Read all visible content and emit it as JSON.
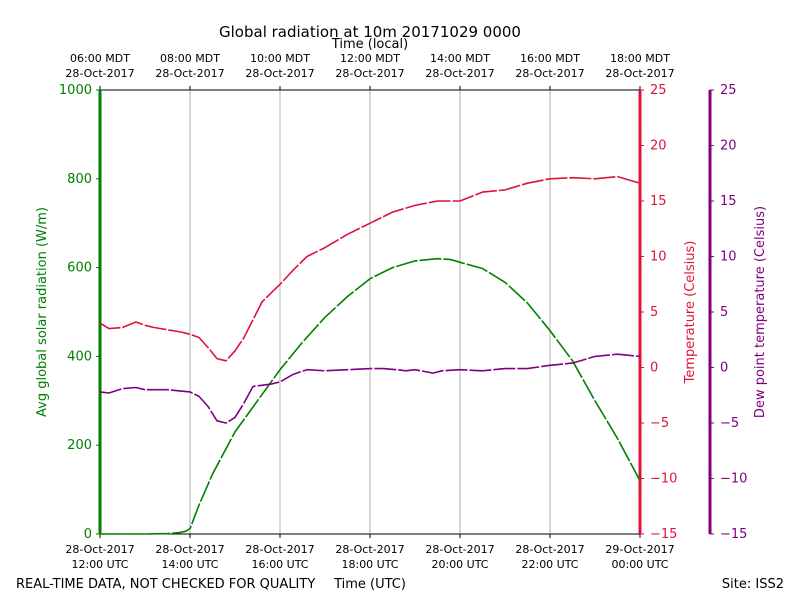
{
  "chart_data": {
    "type": "line",
    "title": "Global radiation at 10m 20171029 0000",
    "top_axis_label": "Time (local)",
    "bottom_axis_label": "Time (UTC)",
    "x_unit": "hours since 28-Oct-2017 12:00 UTC",
    "xlim": [
      0,
      12
    ],
    "x_ticks_utc": [
      {
        "x": 0,
        "line1": "28-Oct-2017",
        "line2": "12:00 UTC"
      },
      {
        "x": 2,
        "line1": "28-Oct-2017",
        "line2": "14:00 UTC"
      },
      {
        "x": 4,
        "line1": "28-Oct-2017",
        "line2": "16:00 UTC"
      },
      {
        "x": 6,
        "line1": "28-Oct-2017",
        "line2": "18:00 UTC"
      },
      {
        "x": 8,
        "line1": "28-Oct-2017",
        "line2": "20:00 UTC"
      },
      {
        "x": 10,
        "line1": "28-Oct-2017",
        "line2": "22:00 UTC"
      },
      {
        "x": 12,
        "line1": "29-Oct-2017",
        "line2": "00:00 UTC"
      }
    ],
    "x_ticks_local": [
      {
        "x": 0,
        "line1": "06:00 MDT",
        "line2": "28-Oct-2017"
      },
      {
        "x": 2,
        "line1": "08:00 MDT",
        "line2": "28-Oct-2017"
      },
      {
        "x": 4,
        "line1": "10:00 MDT",
        "line2": "28-Oct-2017"
      },
      {
        "x": 6,
        "line1": "12:00 MDT",
        "line2": "28-Oct-2017"
      },
      {
        "x": 8,
        "line1": "14:00 MDT",
        "line2": "28-Oct-2017"
      },
      {
        "x": 10,
        "line1": "16:00 MDT",
        "line2": "28-Oct-2017"
      },
      {
        "x": 12,
        "line1": "18:00 MDT",
        "line2": "28-Oct-2017"
      }
    ],
    "axes": [
      {
        "id": "radiation",
        "label": "Avg global solar radiation (W/m)",
        "color": "#008000",
        "ylim": [
          0,
          1000
        ],
        "ticks": [
          0,
          200,
          400,
          600,
          800,
          1000
        ]
      },
      {
        "id": "temperature",
        "label": "Temperature (Celsius)",
        "color": "#dc143c",
        "ylim": [
          -15,
          25
        ],
        "ticks": [
          -15,
          -10,
          -5,
          0,
          5,
          10,
          15,
          20,
          25
        ]
      },
      {
        "id": "dewpoint",
        "label": "Dew point temperature (Celsius)",
        "color": "#800080",
        "ylim": [
          -15,
          25
        ],
        "ticks": [
          -15,
          -10,
          -5,
          0,
          5,
          10,
          15,
          20,
          25
        ]
      }
    ],
    "series": [
      {
        "name": "Avg global solar radiation",
        "axis": "radiation",
        "color": "#008000",
        "x": [
          0,
          1,
          1.5,
          1.75,
          1.9,
          2.0,
          2.2,
          2.5,
          3.0,
          3.5,
          4.0,
          4.5,
          5.0,
          5.5,
          6.0,
          6.5,
          7.0,
          7.5,
          7.8,
          8.0,
          8.5,
          9.0,
          9.5,
          10.0,
          10.5,
          11.0,
          11.5,
          12.0
        ],
        "y": [
          0,
          0,
          1,
          3,
          6,
          12,
          65,
          135,
          230,
          300,
          370,
          432,
          488,
          535,
          575,
          600,
          615,
          620,
          618,
          612,
          598,
          567,
          520,
          458,
          390,
          300,
          215,
          120
        ]
      },
      {
        "name": "Temperature",
        "axis": "temperature",
        "color": "#dc143c",
        "x": [
          0,
          0.2,
          0.5,
          0.8,
          1.0,
          1.2,
          1.5,
          1.8,
          2.0,
          2.2,
          2.4,
          2.6,
          2.8,
          3.0,
          3.2,
          3.4,
          3.6,
          3.8,
          4.0,
          4.3,
          4.6,
          5.0,
          5.5,
          6.0,
          6.5,
          7.0,
          7.5,
          8.0,
          8.5,
          9.0,
          9.5,
          10.0,
          10.5,
          11.0,
          11.5,
          12.0
        ],
        "y": [
          4,
          3.5,
          3.6,
          4.1,
          3.8,
          3.6,
          3.4,
          3.2,
          3.0,
          2.7,
          1.8,
          0.8,
          0.6,
          1.5,
          2.7,
          4.3,
          5.9,
          6.7,
          7.5,
          8.8,
          10.0,
          10.8,
          12.0,
          13.0,
          14.0,
          14.6,
          15.0,
          15.0,
          15.8,
          16.0,
          16.6,
          17.0,
          17.1,
          17.0,
          17.2,
          16.6
        ]
      },
      {
        "name": "Dew point temperature",
        "axis": "dewpoint",
        "color": "#800080",
        "x": [
          0,
          0.2,
          0.5,
          0.8,
          1.0,
          1.5,
          2.0,
          2.2,
          2.4,
          2.6,
          2.8,
          3.0,
          3.2,
          3.4,
          3.6,
          3.8,
          4.0,
          4.3,
          4.6,
          5.0,
          5.5,
          6.0,
          6.3,
          6.6,
          6.8,
          7.0,
          7.4,
          7.6,
          8.0,
          8.5,
          9.0,
          9.5,
          10.0,
          10.5,
          11.0,
          11.5,
          12.0
        ],
        "y": [
          -2.2,
          -2.3,
          -1.9,
          -1.8,
          -2.0,
          -2.0,
          -2.2,
          -2.6,
          -3.5,
          -4.8,
          -5.0,
          -4.5,
          -3.2,
          -1.7,
          -1.6,
          -1.5,
          -1.3,
          -0.6,
          -0.2,
          -0.3,
          -0.2,
          -0.1,
          -0.1,
          -0.2,
          -0.3,
          -0.2,
          -0.5,
          -0.3,
          -0.2,
          -0.3,
          -0.1,
          -0.1,
          0.2,
          0.4,
          1.0,
          1.2,
          1.0
        ]
      }
    ]
  },
  "footer": {
    "disclaimer": "REAL-TIME DATA, NOT CHECKED FOR QUALITY",
    "site": "Site: ISS2"
  }
}
